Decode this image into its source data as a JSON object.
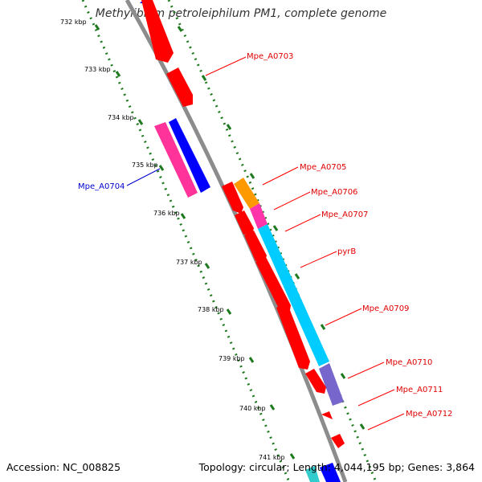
{
  "title": "Methylibium petroleiphilum PM1, complete genome",
  "footer": {
    "accession": "Accession: NC_008825",
    "summary": "Topology: circular; Length: 4,044,195 bp; Genes: 3,864"
  },
  "colors": {
    "backbone": "#8c8c8c",
    "tick_dots": "#1f7a1f",
    "label_red": "#e00000",
    "label_blue": "#0000cc",
    "gene_red": "#ff0000",
    "gene_pink": "#ff3399",
    "gene_blue": "#0000ff",
    "gene_orange": "#ff9900",
    "gene_magenta": "#ff33aa",
    "gene_cyan": "#00ccff",
    "gene_purple": "#7766cc"
  },
  "ticks": [
    {
      "label": "732 kbp",
      "kbp": 732
    },
    {
      "label": "733 kbp",
      "kbp": 733
    },
    {
      "label": "734 kbp",
      "kbp": 734
    },
    {
      "label": "735 kbp",
      "kbp": 735
    },
    {
      "label": "736 kbp",
      "kbp": 736
    },
    {
      "label": "737 kbp",
      "kbp": 737
    },
    {
      "label": "738 kbp",
      "kbp": 738
    },
    {
      "label": "739 kbp",
      "kbp": 739
    },
    {
      "label": "740 kbp",
      "kbp": 740
    },
    {
      "label": "741 kbp",
      "kbp": 741
    }
  ],
  "gene_labels": [
    {
      "text": "Mpe_A0703",
      "color": "#e00000"
    },
    {
      "text": "Mpe_A0704",
      "color": "#0000cc"
    },
    {
      "text": "Mpe_A0705",
      "color": "#e00000"
    },
    {
      "text": "Mpe_A0706",
      "color": "#e00000"
    },
    {
      "text": "Mpe_A0707",
      "color": "#e00000"
    },
    {
      "text": "pyrB",
      "color": "#e00000"
    },
    {
      "text": "Mpe_A0709",
      "color": "#e00000"
    },
    {
      "text": "Mpe_A0710",
      "color": "#e00000"
    },
    {
      "text": "Mpe_A0711",
      "color": "#e00000"
    },
    {
      "text": "Mpe_A0712",
      "color": "#e00000"
    }
  ]
}
